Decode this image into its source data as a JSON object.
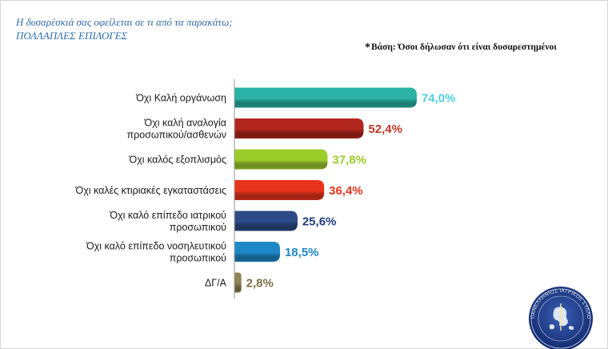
{
  "header": {
    "question_line1": "Η δυσαρέσκιά σας οφείλεται σε τι από τα παρακάτω;",
    "question_line2": "ΠΟΛΛΑΠΛΕΣ ΕΠΙΛΟΓΕΣ",
    "base_note": "Βάση: Όσοι δήλωσαν ότι είναι δυσαρεστημένοι"
  },
  "logo": {
    "icon": "medical-association-seal-icon",
    "text": "ΠΑΝΕΛΛΗΝΙΟΣ ΙΑΤΡΙΚΟΣ ΣΥΛΛΟΓΟΣ"
  },
  "chart_data": {
    "type": "bar",
    "orientation": "horizontal",
    "categories": [
      [
        "Όχι Καλή οργάνωση"
      ],
      [
        "Όχι καλή αναλογία",
        "προσωπικού/ασθενών"
      ],
      [
        "Όχι καλός εξοπλισμός"
      ],
      [
        "Όχι καλές κτιριακές εγκαταστάσεις"
      ],
      [
        "Όχι καλό επίπεδο ιατρικού",
        "προσωπικού"
      ],
      [
        "Όχι καλό επίπεδο νοσηλευτικού",
        "προσωπικού"
      ],
      [
        "ΔΓ/Α"
      ]
    ],
    "values": [
      74.0,
      52.4,
      37.8,
      36.4,
      25.6,
      18.5,
      2.8
    ],
    "value_labels": [
      "74,0%",
      "52,4%",
      "37,8%",
      "36,4%",
      "25,6%",
      "18,5%",
      "2,8%"
    ],
    "bar_colors": [
      "#2ab3a6",
      "#b3261e",
      "#9ccc2a",
      "#e8331c",
      "#2c4a86",
      "#1e88c7",
      "#8f8352"
    ],
    "label_colors": [
      "#4fd0e0",
      "#c0392b",
      "#9ccc2a",
      "#e8331c",
      "#1f3f7a",
      "#1e88c7",
      "#7a6f45"
    ],
    "xlim": [
      0,
      100
    ],
    "grid": false,
    "legend": "none"
  }
}
